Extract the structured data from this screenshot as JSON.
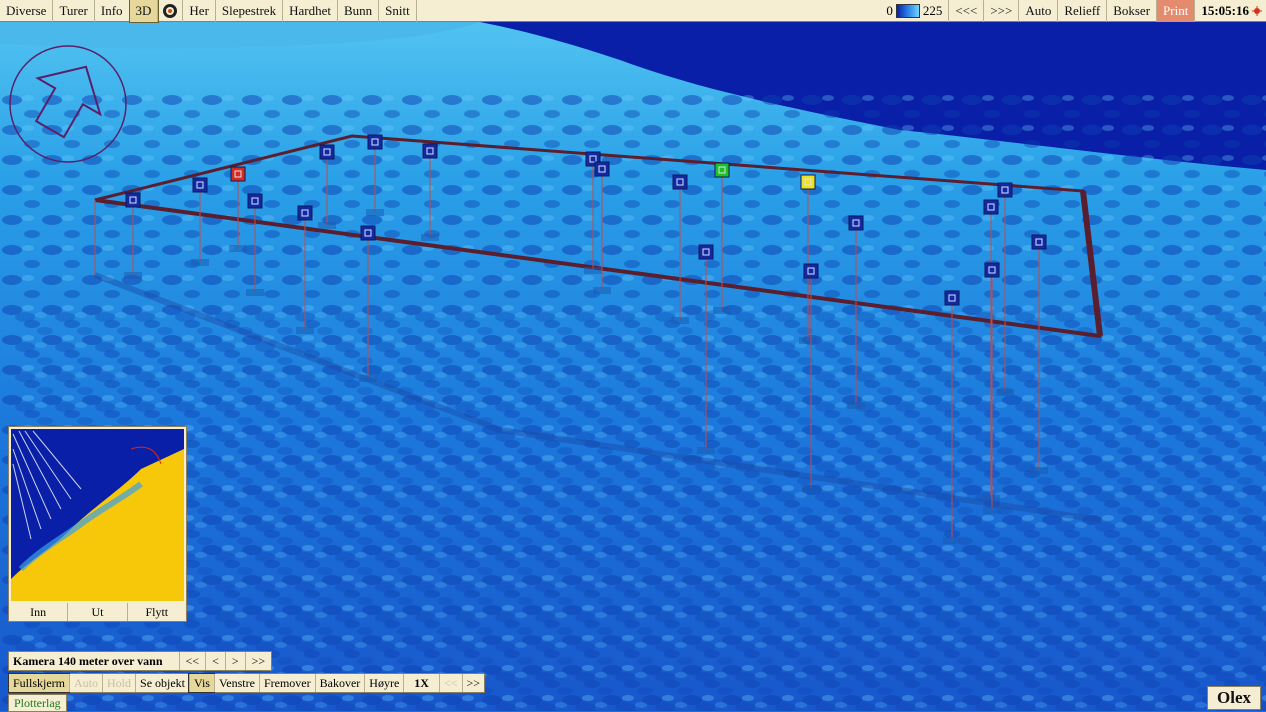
{
  "menu": [
    "Diverse",
    "Turer",
    "Info",
    "3D",
    "Her",
    "Slepestrek",
    "Hardhet",
    "Bunn",
    "Snitt"
  ],
  "depth_scale": {
    "min": "0",
    "max": "225"
  },
  "right_buttons": [
    "<<<",
    ">>>",
    "Auto",
    "Relieff",
    "Bokser",
    "Print"
  ],
  "clock": "15:05:16",
  "minimap_buttons": [
    "Inn",
    "Ut",
    "Flytt"
  ],
  "camera": {
    "label": "Kamera 140 meter over vann",
    "buttons": [
      "<<",
      "<",
      ">",
      ">>"
    ]
  },
  "controls": {
    "items": [
      "Fullskjerm",
      "Auto",
      "Hold",
      "Se objekt",
      "Vis",
      "Venstre",
      "Fremover",
      "Bakover",
      "Høyre",
      "1X",
      "<<",
      ">>"
    ]
  },
  "layers_button": "Plotterlag",
  "brand": "Olex",
  "colors": {
    "deep": "#0a1fa8",
    "mid": "#1d6fd6",
    "shallow": "#5cd3f5",
    "frame": "#5a1f2f",
    "marker_default": "#1428a0",
    "marker_red": "#d62a1a",
    "marker_green": "#1fc21f",
    "marker_yellow": "#f2e01a"
  },
  "markers": [
    {
      "color": "marker_default"
    },
    {
      "color": "marker_default"
    },
    {
      "color": "marker_red"
    },
    {
      "color": "marker_default"
    },
    {
      "color": "marker_default"
    },
    {
      "color": "marker_default"
    },
    {
      "color": "marker_default"
    },
    {
      "color": "marker_default"
    },
    {
      "color": "marker_default"
    },
    {
      "color": "marker_default"
    },
    {
      "color": "marker_default"
    },
    {
      "color": "marker_default"
    },
    {
      "color": "marker_default"
    },
    {
      "color": "marker_green"
    },
    {
      "color": "marker_yellow"
    },
    {
      "color": "marker_default"
    },
    {
      "color": "marker_default"
    },
    {
      "color": "marker_default"
    },
    {
      "color": "marker_default"
    },
    {
      "color": "marker_default"
    },
    {
      "color": "marker_default"
    },
    {
      "color": "marker_default"
    }
  ]
}
